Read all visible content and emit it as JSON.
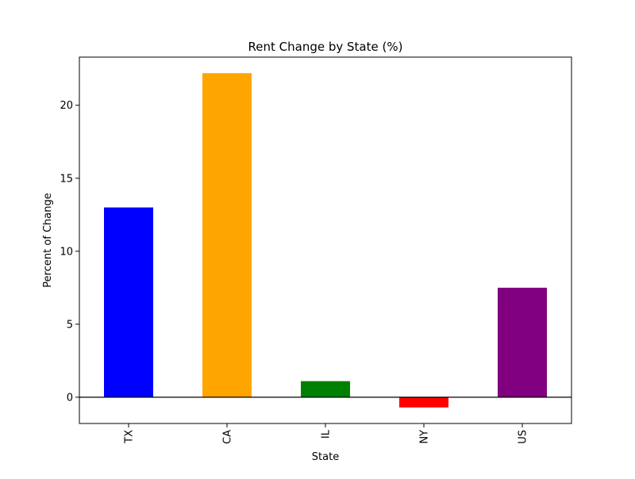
{
  "chart_data": {
    "type": "bar",
    "title": "Rent Change by State (%)",
    "xlabel": "State",
    "ylabel": "Percent of Change",
    "categories": [
      "TX",
      "CA",
      "IL",
      "NY",
      "US"
    ],
    "values": [
      13.0,
      22.2,
      1.1,
      -0.7,
      7.5
    ],
    "colors": [
      "#0000ff",
      "#ffa500",
      "#008000",
      "#ff0000",
      "#800080"
    ],
    "yticks": [
      0,
      5,
      10,
      15,
      20
    ],
    "ylim": [
      -1.8,
      23.3
    ],
    "grid": false,
    "legend": "none",
    "zero_line": true
  }
}
